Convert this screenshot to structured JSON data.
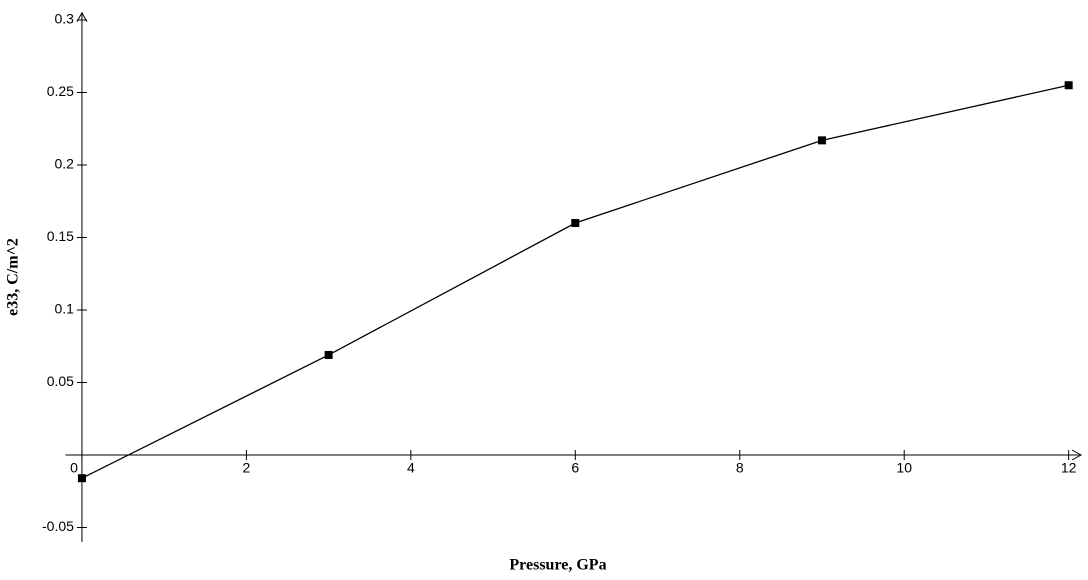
{
  "chart_data": {
    "type": "line",
    "x_label": "Pressure, GPa",
    "y_label": "e33, C/m^2",
    "x": [
      0,
      3,
      6,
      9,
      12
    ],
    "series": [
      {
        "color": "#000000",
        "values": [
          -0.016,
          0.069,
          0.16,
          0.217,
          0.255
        ]
      }
    ],
    "xlim": [
      -0.2,
      12.15
    ],
    "ylim": [
      -0.06,
      0.305
    ],
    "xticks": [
      0,
      2,
      4,
      6,
      8,
      10,
      12
    ],
    "yticks": [
      -0.05,
      0.05,
      0.1,
      0.15,
      0.2,
      0.25,
      0.3
    ],
    "grid": false
  }
}
